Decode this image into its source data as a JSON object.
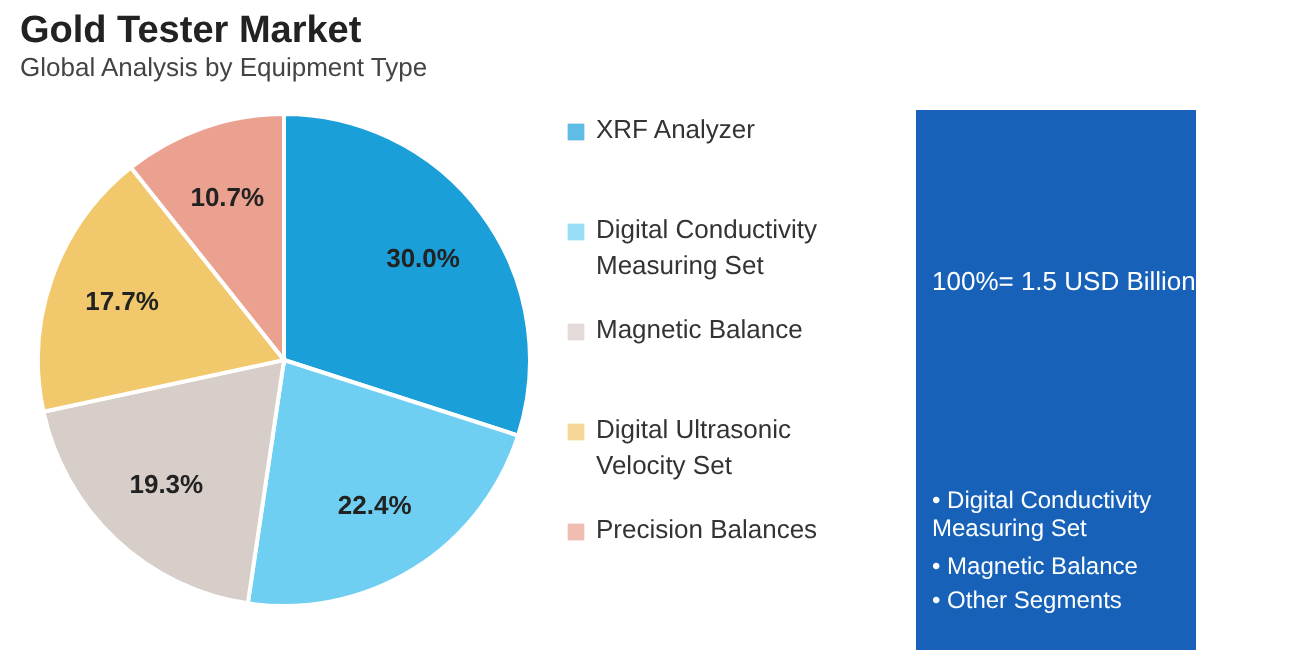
{
  "chart_data": {
    "type": "pie",
    "title": "Gold Tester Market",
    "subtitle": "Global Analysis by Equipment Type",
    "categories": [
      "XRF Analyzer",
      "Digital Conductivity Measuring Set",
      "Magnetic Balance",
      "Digital Ultrasonic Velocity Set",
      "Precision Balances"
    ],
    "values": [
      30.0,
      22.4,
      19.3,
      17.7,
      10.7
    ],
    "value_labels": [
      "30.0%",
      "22.4%",
      "19.3%",
      "17.7%",
      "10.7%"
    ],
    "colors": [
      "#1b9fd8",
      "#6fcff2",
      "#d7cdc9",
      "#f1c86c",
      "#eba18f"
    ],
    "legend": "right",
    "annotations": [
      "100%= 1.5 USD Billion",
      "• Digital Conductivity Measuring Set",
      "• Magnetic Balance",
      "• Other Segments"
    ]
  }
}
